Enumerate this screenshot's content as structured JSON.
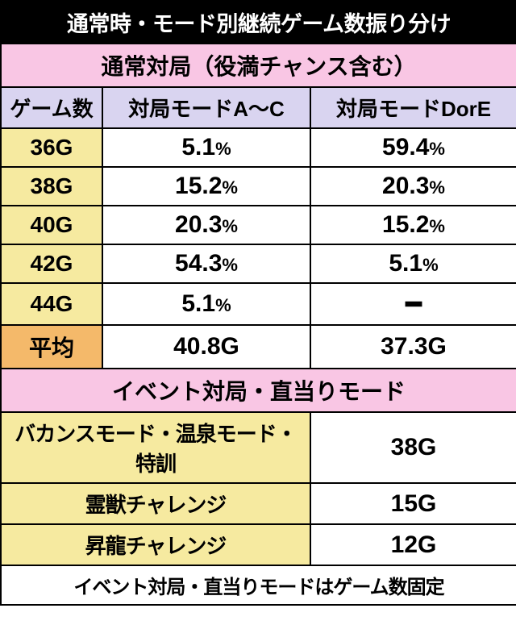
{
  "title": "通常時・モード別継続ゲーム数振り分け",
  "section1": {
    "header": "通常対局（役満チャンス含む）",
    "cols": {
      "c1": "ゲーム数",
      "c2": "対局モードA〜C",
      "c3": "対局モードDorE"
    },
    "rows": [
      {
        "g": "36G",
        "a": "5.1",
        "b": "59.4"
      },
      {
        "g": "38G",
        "a": "15.2",
        "b": "20.3"
      },
      {
        "g": "40G",
        "a": "20.3",
        "b": "15.2"
      },
      {
        "g": "42G",
        "a": "54.3",
        "b": "5.1"
      },
      {
        "g": "44G",
        "a": "5.1",
        "b": null
      }
    ],
    "avg": {
      "label": "平均",
      "a": "40.8G",
      "b": "37.3G"
    }
  },
  "section2": {
    "header": "イベント対局・直当りモード",
    "rows": [
      {
        "label": "バカンスモード・温泉モード・特訓",
        "v": "38G"
      },
      {
        "label": "霊獣チャレンジ",
        "v": "15G"
      },
      {
        "label": "昇龍チャレンジ",
        "v": "12G"
      }
    ],
    "footer": "イベント対局・直当りモードはゲーム数固定"
  },
  "percent_suffix": "%",
  "dash": "━"
}
